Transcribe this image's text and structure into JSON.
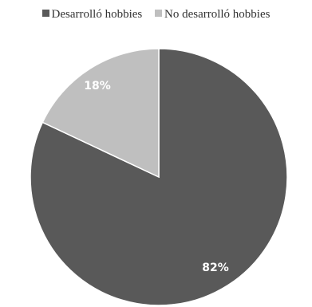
{
  "chart_data": {
    "type": "pie",
    "categories": [
      "Desarrolló hobbies",
      "No desarrolló hobbies"
    ],
    "values": [
      82,
      18
    ],
    "labels": [
      "82%",
      "18%"
    ],
    "colors": [
      "#595959",
      "#bfbfbf"
    ],
    "label_colors": [
      "#ffffff",
      "#ffffff"
    ],
    "title": "",
    "legend_position": "top"
  }
}
